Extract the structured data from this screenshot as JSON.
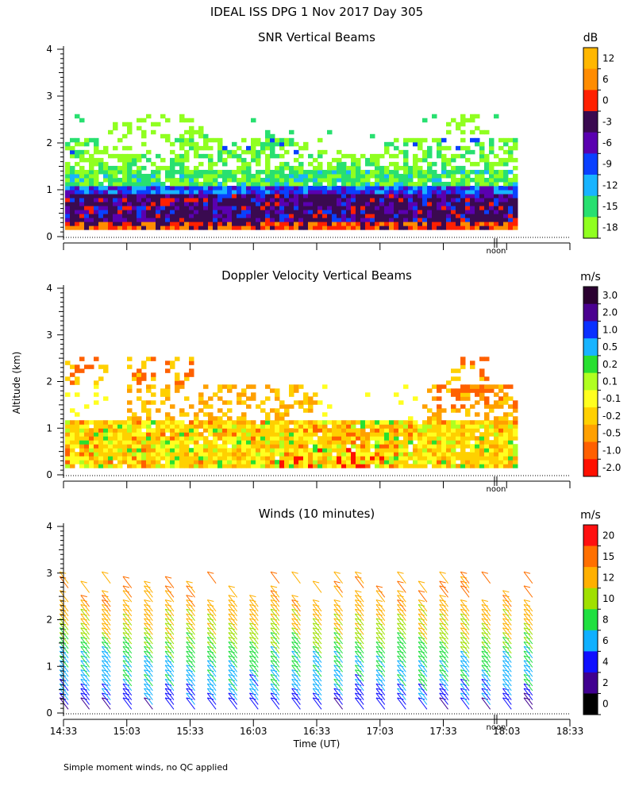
{
  "figure": {
    "title": "IDEAL ISS DPG    1 Nov 2017 Day 305",
    "y_label": "Altitude (km)",
    "x_label": "Time (UT)",
    "footnote": "Simple moment winds, no QC applied",
    "noon_label": "noon"
  },
  "chart_data": [
    {
      "type": "heatmap",
      "title": "SNR Vertical Beams",
      "ylim": [
        0,
        4
      ],
      "y_ticks": [
        "0",
        "1",
        "2",
        "3",
        "4"
      ],
      "xlim_minutes_since_1433": [
        0,
        240
      ],
      "colorbar": {
        "unit": "dB",
        "labels": [
          "12",
          "6",
          "0",
          "-3",
          "-6",
          "-9",
          "-12",
          "-15",
          "-18"
        ],
        "colors": [
          "#ffb700",
          "#ff8c00",
          "#ff2000",
          "#3a0a50",
          "#5a00b0",
          "#0a40ff",
          "#18b4ff",
          "#28e070",
          "#90ff20"
        ]
      },
      "layers_km": [
        {
          "from": 0.15,
          "to": 0.3,
          "level": "0"
        },
        {
          "from": 0.3,
          "to": 0.85,
          "level": "-3"
        },
        {
          "from": 0.85,
          "to": 1.05,
          "level": "-9"
        },
        {
          "from": 1.05,
          "to": 1.6,
          "level": "-15"
        },
        {
          "from": 1.6,
          "to": 2.5,
          "level": "-18 (patchy)"
        }
      ]
    },
    {
      "type": "heatmap",
      "title": "Doppler Velocity Vertical Beams",
      "ylim": [
        0,
        4
      ],
      "y_ticks": [
        "0",
        "1",
        "2",
        "3",
        "4"
      ],
      "colorbar": {
        "unit": "m/s",
        "labels": [
          "3.0",
          "2.0",
          "1.0",
          "0.5",
          "0.2",
          "0.1",
          "-0.1",
          "-0.2",
          "-0.5",
          "-1.0",
          "-2.0"
        ],
        "colors": [
          "#2a0030",
          "#4a0090",
          "#0a30ff",
          "#18b4ff",
          "#28e030",
          "#b0ff20",
          "#ffff20",
          "#ffd000",
          "#ffa000",
          "#ff6000",
          "#ff1000"
        ]
      },
      "layers_km": [
        {
          "from": 0.15,
          "to": 1.1,
          "level": "-0.1 to -0.5"
        },
        {
          "from": 1.4,
          "to": 2.5,
          "level": "-0.2 to -1.0 (patchy)"
        }
      ]
    },
    {
      "type": "scatter",
      "subtype": "wind-barbs",
      "title": "Winds (10 minutes)",
      "ylim": [
        0,
        4
      ],
      "y_ticks": [
        "0",
        "1",
        "2",
        "3",
        "4"
      ],
      "x_ticks": [
        "14:33",
        "15:03",
        "15:33",
        "16:03",
        "16:33",
        "17:03",
        "17:33",
        "18:03",
        "18:33"
      ],
      "profile_minutes_since_1433": [
        0,
        10,
        20,
        30,
        40,
        50,
        60,
        70,
        80,
        90,
        100,
        110,
        120,
        130,
        140,
        150,
        160,
        170,
        180,
        190,
        200,
        210,
        220
      ],
      "speed_by_altitude_km": [
        {
          "alt": 0.0,
          "speed": 4
        },
        {
          "alt": 0.5,
          "speed": 7
        },
        {
          "alt": 1.0,
          "speed": 8
        },
        {
          "alt": 1.5,
          "speed": 11
        },
        {
          "alt": 2.0,
          "speed": 13
        },
        {
          "alt": 2.5,
          "speed": 15
        },
        {
          "alt": 3.0,
          "speed": 14
        }
      ],
      "colorbar": {
        "unit": "m/s",
        "labels": [
          "20",
          "15",
          "12",
          "10",
          "8",
          "6",
          "4",
          "2",
          "0"
        ],
        "colors": [
          "#ff1010",
          "#ff7000",
          "#ffb000",
          "#a0e000",
          "#20e040",
          "#10b0ff",
          "#1010ff",
          "#400090",
          "#000000"
        ]
      }
    }
  ]
}
